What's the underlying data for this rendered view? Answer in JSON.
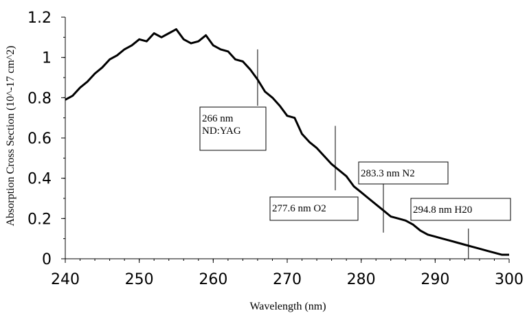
{
  "chart_data": {
    "type": "line",
    "title": "",
    "xlabel": "Wavelength (nm)",
    "ylabel": "Absorption Cross Section (10^-17 cm^2)",
    "xlim": [
      240,
      300
    ],
    "ylim": [
      0,
      1.2
    ],
    "xticks": [
      240,
      250,
      260,
      270,
      280,
      290,
      300
    ],
    "yticks": [
      0,
      0.2,
      0.4,
      0.6,
      0.8,
      1,
      1.2
    ],
    "grid": false,
    "series": [
      {
        "x": [
          240,
          241,
          242,
          243,
          244,
          245,
          246,
          247,
          248,
          249,
          250,
          251,
          252,
          253,
          254,
          255,
          256,
          257,
          258,
          259,
          260,
          261,
          262,
          263,
          264,
          265,
          266,
          267,
          268,
          269,
          270,
          271,
          272,
          273,
          274,
          275,
          276,
          277,
          278,
          279,
          280,
          281,
          282,
          283,
          284,
          285,
          286,
          287,
          288,
          289,
          290,
          291,
          292,
          293,
          294,
          295,
          296,
          297,
          298,
          299,
          300
        ],
        "y": [
          0.79,
          0.81,
          0.85,
          0.88,
          0.92,
          0.95,
          0.99,
          1.01,
          1.04,
          1.06,
          1.09,
          1.08,
          1.12,
          1.1,
          1.12,
          1.14,
          1.09,
          1.07,
          1.08,
          1.11,
          1.06,
          1.04,
          1.03,
          0.99,
          0.98,
          0.94,
          0.89,
          0.83,
          0.8,
          0.76,
          0.71,
          0.7,
          0.62,
          0.58,
          0.55,
          0.51,
          0.47,
          0.44,
          0.41,
          0.36,
          0.33,
          0.3,
          0.27,
          0.24,
          0.21,
          0.2,
          0.19,
          0.17,
          0.14,
          0.12,
          0.11,
          0.1,
          0.09,
          0.08,
          0.07,
          0.06,
          0.05,
          0.04,
          0.03,
          0.02,
          0.02
        ]
      }
    ],
    "annotations": [
      {
        "lines": [
          "266 nm",
          "ND:YAG"
        ],
        "x": 266,
        "y_from": 0.76,
        "y_to": 1.04
      },
      {
        "lines": [
          "277.6 nm O2"
        ],
        "x": 276.5,
        "y_from": 0.34,
        "y_to": 0.66
      },
      {
        "lines": [
          "283.3 nm N2"
        ],
        "x": 283,
        "y_from": 0.13,
        "y_to": 0.38
      },
      {
        "lines": [
          "294.8 nm H20"
        ],
        "x": 294.5,
        "y_from": 0.0,
        "y_to": 0.15
      }
    ],
    "style": {
      "line_color": "#000000",
      "axis_color": "#000000"
    }
  }
}
